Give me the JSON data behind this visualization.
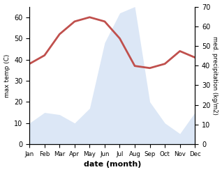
{
  "months": [
    "Jan",
    "Feb",
    "Mar",
    "Apr",
    "May",
    "Jun",
    "Jul",
    "Aug",
    "Sep",
    "Oct",
    "Nov",
    "Dec"
  ],
  "temp": [
    38,
    42,
    52,
    58,
    60,
    58,
    50,
    37,
    36,
    38,
    44,
    41
  ],
  "precip": [
    10,
    15,
    14,
    10,
    17,
    48,
    62,
    65,
    20,
    10,
    5,
    15
  ],
  "temp_color": "#c0504d",
  "precip_fill_color": "#c5d8f0",
  "ylabel_left": "max temp (C)",
  "ylabel_right": "med. precipitation (kg/m2)",
  "xlabel": "date (month)",
  "ylim_left": [
    0,
    65
  ],
  "ylim_right": [
    0,
    70
  ],
  "yticks_left": [
    0,
    10,
    20,
    30,
    40,
    50,
    60
  ],
  "yticks_right": [
    0,
    10,
    20,
    30,
    40,
    50,
    60,
    70
  ]
}
